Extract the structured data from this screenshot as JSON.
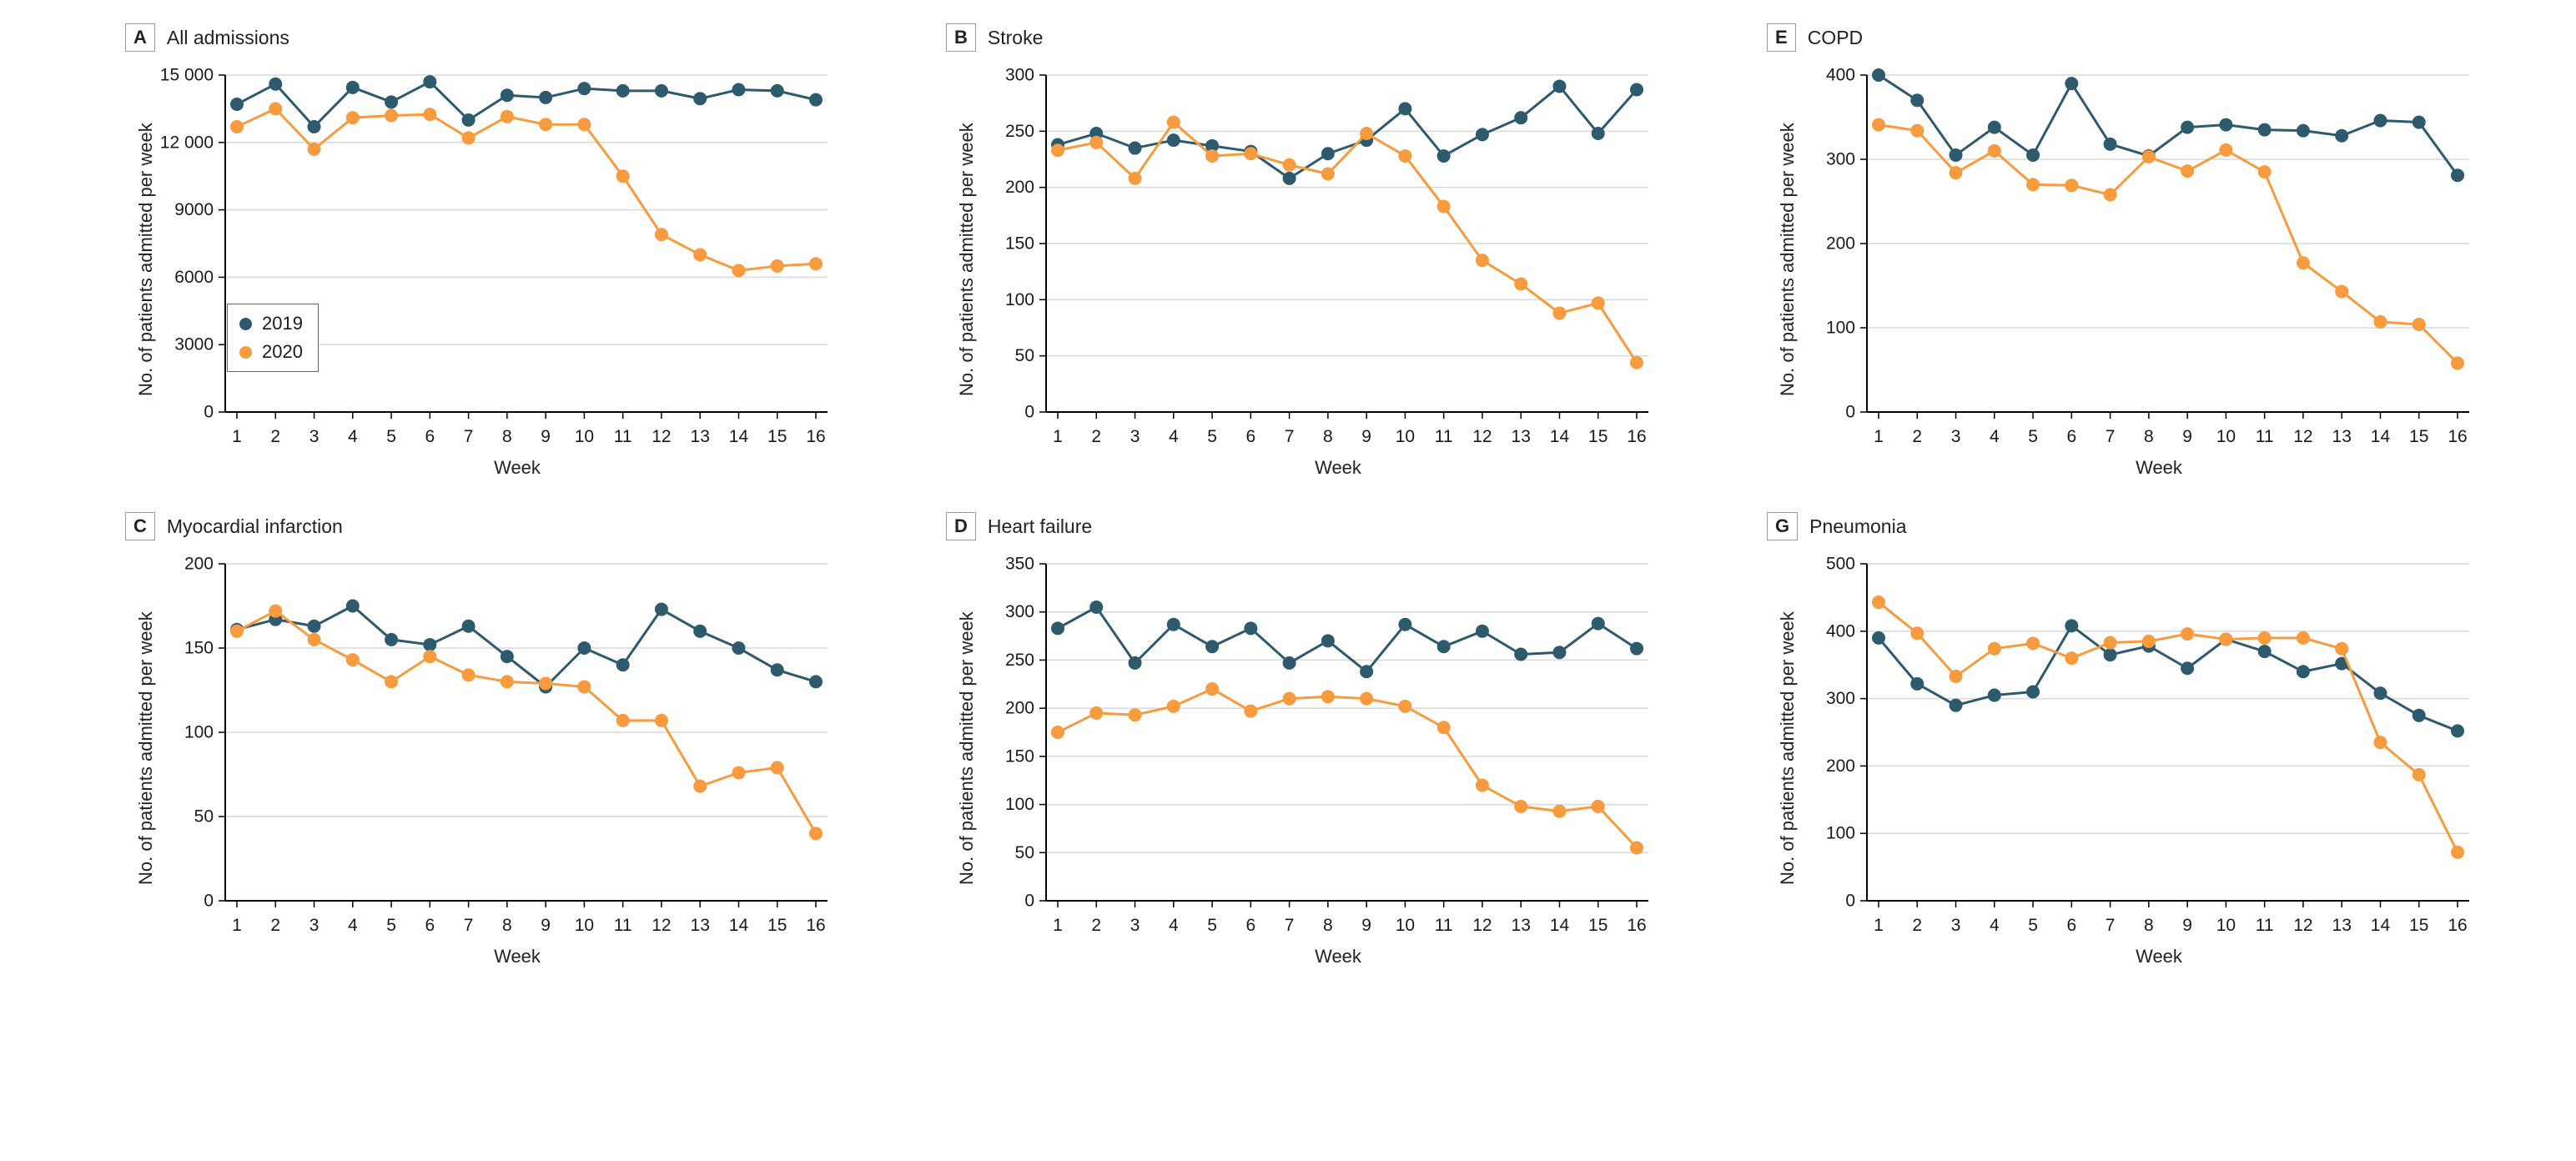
{
  "colors": {
    "series_2019": "#2E5A6D",
    "series_2020": "#F79B3E",
    "grid": "#d9d9d9",
    "axis": "#000000",
    "text": "#1a1a1a"
  },
  "axis": {
    "xlabel": "Week",
    "ylabel": "No. of patients admitted per week",
    "weeks": [
      1,
      2,
      3,
      4,
      5,
      6,
      7,
      8,
      9,
      10,
      11,
      12,
      13,
      14,
      15,
      16
    ]
  },
  "legend": {
    "items": [
      {
        "label": "2019"
      },
      {
        "label": "2020"
      }
    ]
  },
  "chart_data": [
    {
      "type": "line",
      "panel_label": "A",
      "title": "All admissions",
      "xlabel": "Week",
      "ylabel": "No. of patients admitted per week",
      "ylim": [
        0,
        15000
      ],
      "yticks": [
        0,
        3000,
        6000,
        9000,
        12000,
        15000
      ],
      "ytick_labels": [
        "0",
        "3000",
        "6000",
        "9000",
        "12 000",
        "15 000"
      ],
      "show_legend": true,
      "series": [
        {
          "name": "2019",
          "values": [
            13700,
            14600,
            12700,
            14450,
            13800,
            14700,
            13000,
            14100,
            14000,
            14400,
            14300,
            14300,
            13950,
            14350,
            14300,
            13900
          ]
        },
        {
          "name": "2020",
          "values": [
            12700,
            13500,
            11700,
            13100,
            13200,
            13250,
            12200,
            13150,
            12800,
            12800,
            10500,
            7900,
            7000,
            6300,
            6500,
            6600
          ]
        }
      ]
    },
    {
      "type": "line",
      "panel_label": "B",
      "title": "Stroke",
      "xlabel": "Week",
      "ylabel": "No. of patients admitted per week",
      "ylim": [
        0,
        300
      ],
      "yticks": [
        0,
        50,
        100,
        150,
        200,
        250,
        300
      ],
      "ytick_labels": [
        "0",
        "50",
        "100",
        "150",
        "200",
        "250",
        "300"
      ],
      "show_legend": false,
      "series": [
        {
          "name": "2019",
          "values": [
            238,
            248,
            235,
            242,
            237,
            232,
            208,
            230,
            242,
            270,
            228,
            247,
            262,
            290,
            248,
            287
          ]
        },
        {
          "name": "2020",
          "values": [
            233,
            240,
            208,
            258,
            228,
            230,
            220,
            212,
            248,
            228,
            183,
            135,
            114,
            88,
            97,
            44
          ]
        }
      ]
    },
    {
      "type": "line",
      "panel_label": "E",
      "title": "COPD",
      "xlabel": "Week",
      "ylabel": "No. of patients admitted per week",
      "ylim": [
        0,
        400
      ],
      "yticks": [
        0,
        100,
        200,
        300,
        400
      ],
      "ytick_labels": [
        "0",
        "100",
        "200",
        "300",
        "400"
      ],
      "show_legend": false,
      "series": [
        {
          "name": "2019",
          "values": [
            400,
            370,
            305,
            338,
            305,
            390,
            318,
            304,
            338,
            341,
            335,
            334,
            328,
            346,
            344,
            281
          ]
        },
        {
          "name": "2020",
          "values": [
            341,
            334,
            284,
            310,
            270,
            269,
            258,
            303,
            286,
            311,
            285,
            177,
            143,
            107,
            104,
            58
          ]
        }
      ]
    },
    {
      "type": "line",
      "panel_label": "C",
      "title": "Myocardial infarction",
      "xlabel": "Week",
      "ylabel": "No. of patients admitted per week",
      "ylim": [
        0,
        200
      ],
      "yticks": [
        0,
        50,
        100,
        150,
        200
      ],
      "ytick_labels": [
        "0",
        "50",
        "100",
        "150",
        "200"
      ],
      "show_legend": false,
      "series": [
        {
          "name": "2019",
          "values": [
            161,
            167,
            163,
            175,
            155,
            152,
            163,
            145,
            127,
            150,
            140,
            173,
            160,
            150,
            137,
            130
          ]
        },
        {
          "name": "2020",
          "values": [
            160,
            172,
            155,
            143,
            130,
            145,
            134,
            130,
            129,
            127,
            107,
            107,
            68,
            76,
            79,
            40
          ]
        }
      ]
    },
    {
      "type": "line",
      "panel_label": "D",
      "title": "Heart failure",
      "xlabel": "Week",
      "ylabel": "No. of patients admitted per week",
      "ylim": [
        0,
        350
      ],
      "yticks": [
        0,
        50,
        100,
        150,
        200,
        250,
        300,
        350
      ],
      "ytick_labels": [
        "0",
        "50",
        "100",
        "150",
        "200",
        "250",
        "300",
        "350"
      ],
      "show_legend": false,
      "series": [
        {
          "name": "2019",
          "values": [
            283,
            305,
            247,
            287,
            264,
            283,
            247,
            270,
            238,
            287,
            264,
            280,
            256,
            258,
            288,
            262
          ]
        },
        {
          "name": "2020",
          "values": [
            175,
            195,
            193,
            202,
            220,
            197,
            210,
            212,
            210,
            202,
            180,
            120,
            98,
            93,
            98,
            55
          ]
        }
      ]
    },
    {
      "type": "line",
      "panel_label": "G",
      "title": "Pneumonia",
      "xlabel": "Week",
      "ylabel": "No. of patients admitted per week",
      "ylim": [
        0,
        500
      ],
      "yticks": [
        0,
        100,
        200,
        300,
        400,
        500
      ],
      "ytick_labels": [
        "0",
        "100",
        "200",
        "300",
        "400",
        "500"
      ],
      "show_legend": false,
      "series": [
        {
          "name": "2019",
          "values": [
            390,
            322,
            290,
            305,
            310,
            408,
            365,
            378,
            345,
            388,
            370,
            340,
            352,
            308,
            275,
            252
          ]
        },
        {
          "name": "2020",
          "values": [
            443,
            397,
            333,
            374,
            382,
            360,
            383,
            385,
            396,
            388,
            390,
            390,
            374,
            235,
            187,
            72
          ]
        }
      ]
    }
  ]
}
